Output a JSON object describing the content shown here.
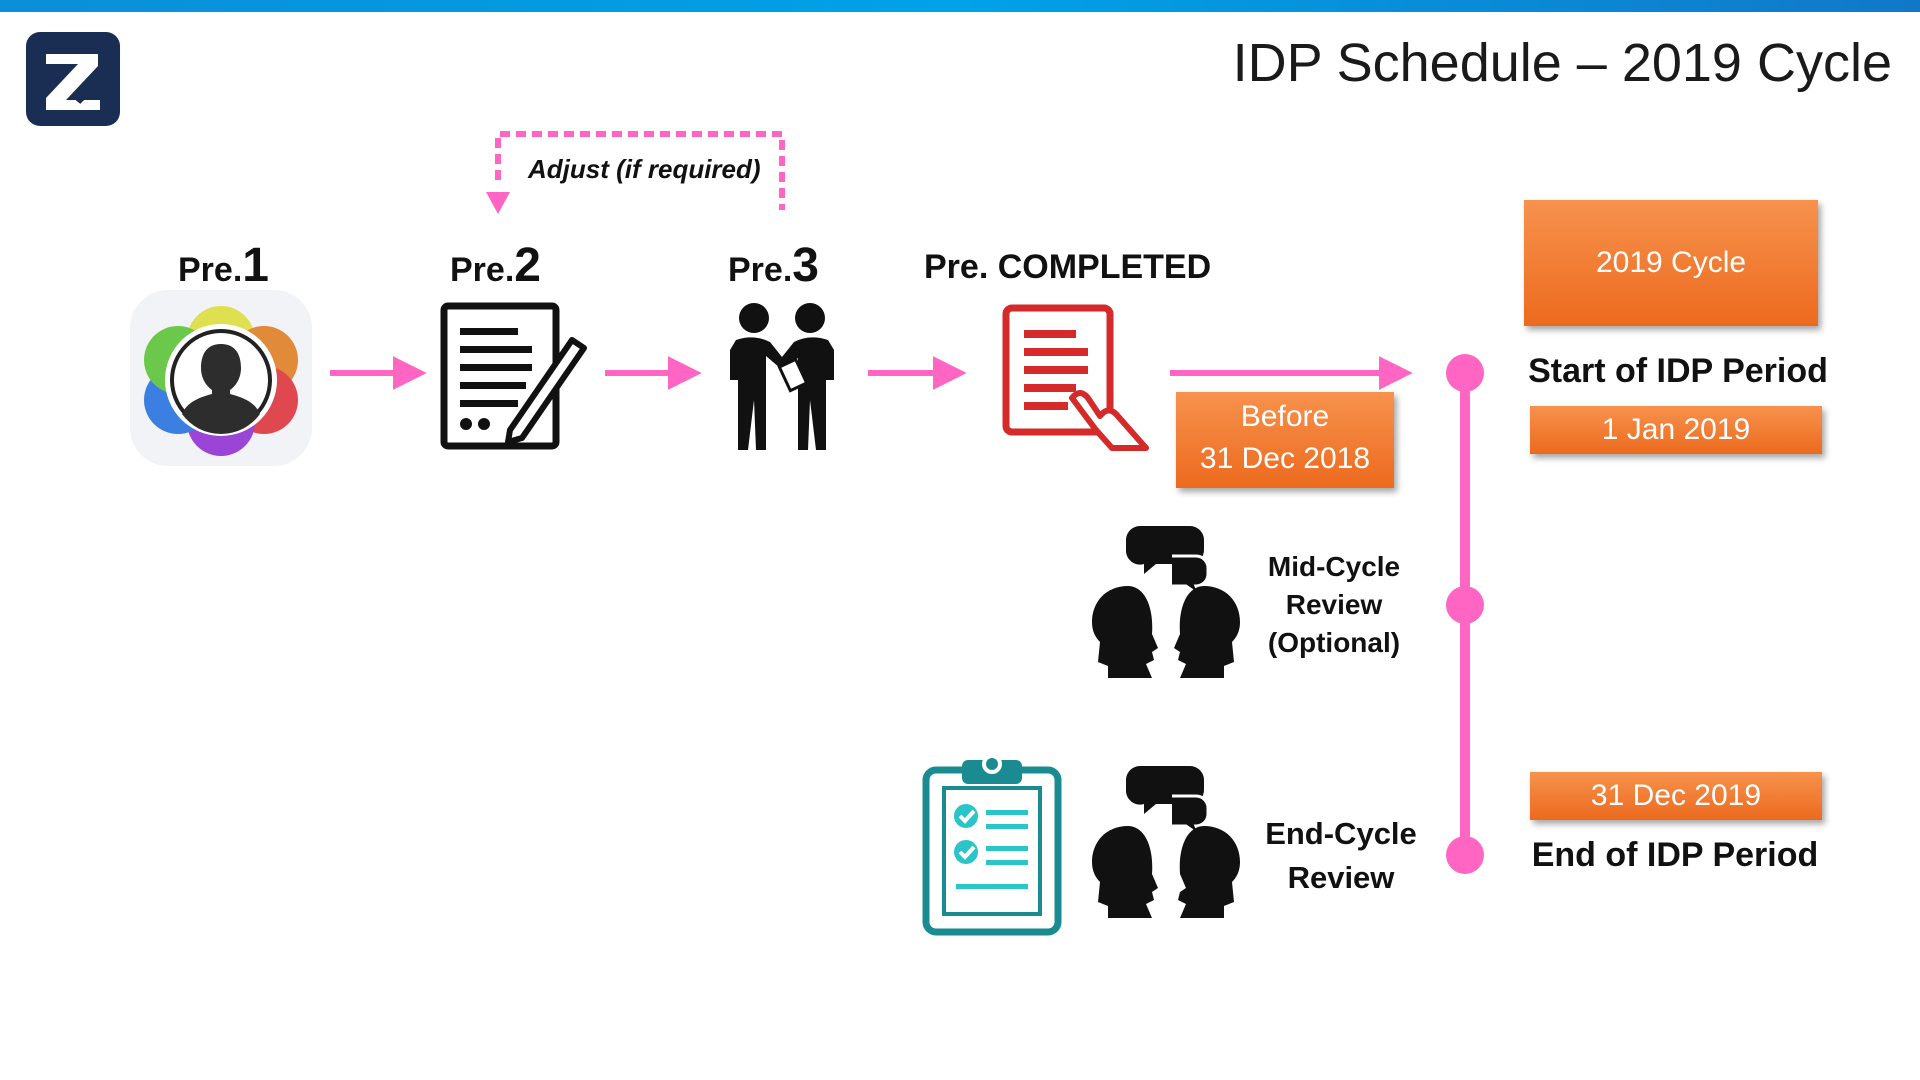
{
  "title": "IDP Schedule – 2019 Cycle",
  "adjust_label": "Adjust (if required)",
  "steps": [
    {
      "prefix": "Pre.",
      "num": "1"
    },
    {
      "prefix": "Pre.",
      "num": "2"
    },
    {
      "prefix": "Pre.",
      "num": "3"
    }
  ],
  "completed_label": "Pre. COMPLETED",
  "before_box": {
    "line1": "Before",
    "line2": "31 Dec 2018"
  },
  "cycle_box": "2019 Cycle",
  "start_label": "Start of IDP Period",
  "start_date": "1 Jan 2019",
  "mid_review": {
    "line1": "Mid-Cycle",
    "line2": "Review",
    "line3": "(Optional)"
  },
  "end_review": {
    "line1": "End-Cycle",
    "line2": "Review"
  },
  "end_date": "31 Dec 2019",
  "end_label": "End of IDP Period",
  "icons": [
    "logo-icon",
    "profile-flower-icon",
    "document-sign-icon",
    "handshake-icon",
    "completed-document-icon",
    "discussion-heads-icon",
    "clipboard-checklist-icon"
  ],
  "colors": {
    "accent_pink": "#ff66c4",
    "orange": "#ee7a2f",
    "completed_red": "#d42a2a",
    "teal": "#1a8c91",
    "logo_navy": "#1a2d52"
  }
}
